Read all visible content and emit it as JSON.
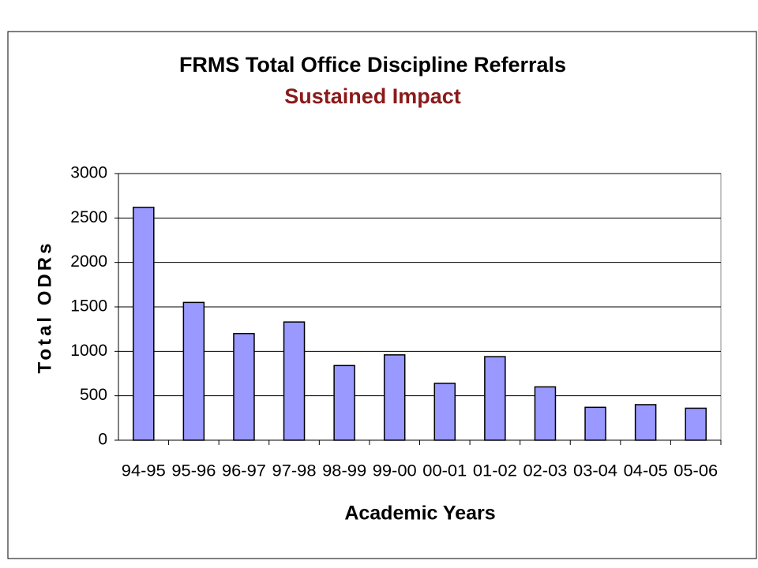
{
  "chart_data": {
    "type": "bar",
    "title": "FRMS Total Office Discipline Referrals",
    "subtitle": "Sustained Impact",
    "y_label": "Total ODRs",
    "x_label": "Academic Years",
    "categories": [
      "94-95",
      "95-96",
      "96-97",
      "97-98",
      "98-99",
      "99-00",
      "00-01",
      "01-02",
      "02-03",
      "03-04",
      "04-05",
      "05-06"
    ],
    "values": [
      2620,
      1550,
      1200,
      1330,
      840,
      960,
      640,
      940,
      600,
      370,
      400,
      360
    ],
    "color": "#9999ff",
    "ylim": [
      0,
      3000
    ],
    "yticks": [
      0,
      500,
      1000,
      1500,
      2000,
      2500,
      3000
    ],
    "grid": true
  }
}
